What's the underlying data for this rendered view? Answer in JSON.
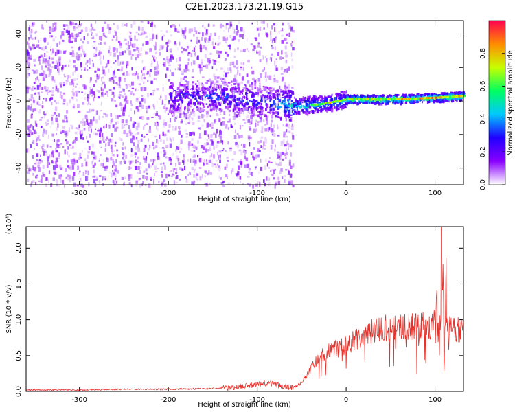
{
  "title": "C2E1.2023.173.21.19.G15",
  "chart_data": [
    {
      "type": "heatmap",
      "title": "",
      "xlabel": "Height of straight line (km)",
      "ylabel": "Frequency (Hz)",
      "xlim": [
        -360,
        132
      ],
      "ylim": [
        -50,
        48
      ],
      "xticks": [
        -300,
        -200,
        -100,
        0,
        100
      ],
      "xtick_labels": [
        "-300",
        "-200",
        "-100",
        "0",
        "100"
      ],
      "yticks": [
        -40,
        -20,
        0,
        20,
        40
      ],
      "ytick_labels": [
        "-40",
        "-20",
        "0",
        "20",
        "40"
      ],
      "colorbar": {
        "label": "Normalized spectral amplitude",
        "range": [
          0,
          1
        ],
        "ticks": [
          0.0,
          0.2,
          0.4,
          0.6,
          0.8
        ],
        "tick_labels": [
          "0.0",
          "0.2",
          "0.4",
          "0.6",
          "0.8"
        ],
        "colormap": [
          "#ffffff",
          "#8a00ff",
          "#2000ff",
          "#00c8ff",
          "#00ff60",
          "#c8ff00",
          "#ff8c00",
          "#ff0050"
        ]
      },
      "features": {
        "noise_region_x": [
          -360,
          -60
        ],
        "dominant_frequency_track": [
          {
            "x": -200,
            "y": 2
          },
          {
            "x": -150,
            "y": 3
          },
          {
            "x": -100,
            "y": 0
          },
          {
            "x": -60,
            "y": -3
          },
          {
            "x": -30,
            "y": -2
          },
          {
            "x": 0,
            "y": 1
          },
          {
            "x": 50,
            "y": 1
          },
          {
            "x": 100,
            "y": 2
          },
          {
            "x": 132,
            "y": 3
          }
        ]
      }
    },
    {
      "type": "line",
      "title": "",
      "xlabel": "Height of straight line (km)",
      "ylabel": "SNR (10 * v/v)",
      "y_multiplier_label": "(x10⁴)",
      "xlim": [
        -360,
        132
      ],
      "ylim": [
        0,
        2.3
      ],
      "xticks": [
        -300,
        -200,
        -100,
        0,
        100
      ],
      "xtick_labels": [
        "-300",
        "-200",
        "-100",
        "0",
        "100"
      ],
      "yticks": [
        0.0,
        0.5,
        1.0,
        1.5,
        2.0
      ],
      "ytick_labels": [
        "0.0",
        "0.5",
        "1.0",
        "1.5",
        "2.0"
      ],
      "series": [
        {
          "color": "#e8312a",
          "x": [
            -360,
            -300,
            -250,
            -200,
            -150,
            -120,
            -100,
            -90,
            -80,
            -70,
            -60,
            -50,
            -40,
            -30,
            -20,
            -10,
            0,
            10,
            20,
            30,
            40,
            50,
            60,
            70,
            80,
            90,
            100,
            105,
            108,
            110,
            112,
            115,
            120,
            132
          ],
          "values": [
            0.02,
            0.02,
            0.03,
            0.03,
            0.04,
            0.06,
            0.1,
            0.12,
            0.1,
            0.06,
            0.05,
            0.12,
            0.3,
            0.5,
            0.55,
            0.6,
            0.65,
            0.72,
            0.8,
            0.85,
            0.88,
            0.9,
            0.88,
            0.9,
            0.92,
            0.9,
            0.95,
            1.0,
            2.3,
            0.4,
            1.5,
            0.9,
            0.87,
            0.85
          ]
        }
      ]
    }
  ]
}
